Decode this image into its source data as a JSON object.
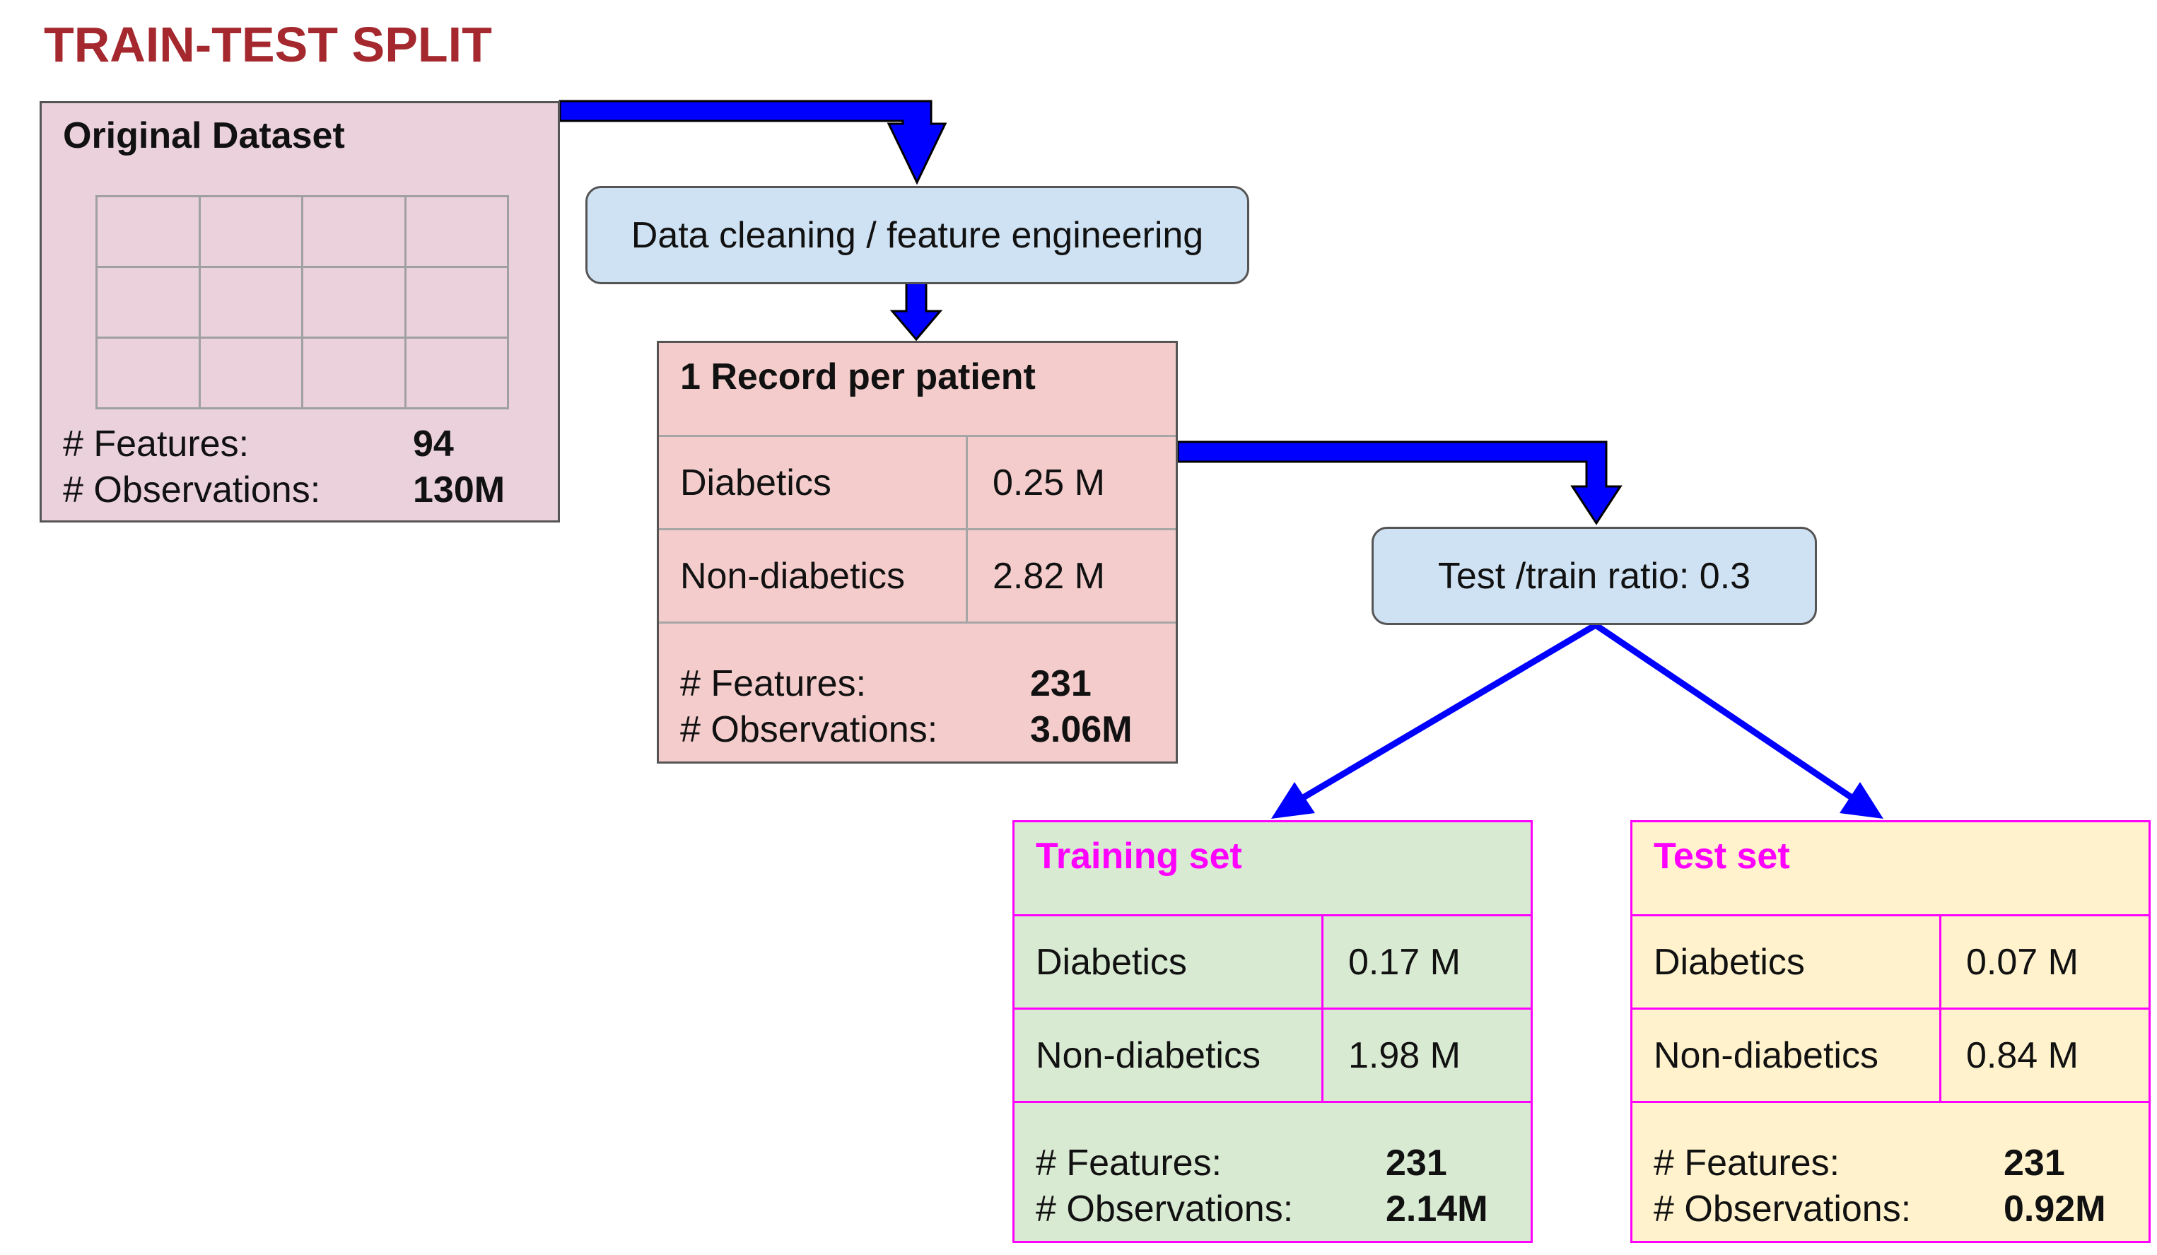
{
  "title": "TRAIN-TEST SPLIT",
  "original_dataset": {
    "title": "Original Dataset",
    "features_label": "# Features:",
    "features_value": "94",
    "observations_label": "# Observations:",
    "observations_value": "130M"
  },
  "cleaning_step": {
    "label": "Data cleaning / feature engineering"
  },
  "record_per_patient": {
    "title": "1 Record per patient",
    "rows": [
      {
        "label": "Diabetics",
        "value": "0.25 M"
      },
      {
        "label": "Non-diabetics",
        "value": "2.82 M"
      }
    ],
    "features_label": "# Features:",
    "features_value": "231",
    "observations_label": "# Observations:",
    "observations_value": "3.06M"
  },
  "split_step": {
    "label": "Test /train ratio: 0.3"
  },
  "training_set": {
    "title": "Training set",
    "rows": [
      {
        "label": "Diabetics",
        "value": "0.17 M"
      },
      {
        "label": "Non-diabetics",
        "value": "1.98 M"
      }
    ],
    "features_label": "# Features:",
    "features_value": "231",
    "observations_label": "# Observations:",
    "observations_value": "2.14M"
  },
  "test_set": {
    "title": "Test set",
    "rows": [
      {
        "label": "Diabetics",
        "value": "0.07 M"
      },
      {
        "label": "Non-diabetics",
        "value": "0.84 M"
      }
    ],
    "features_label": "# Features:",
    "features_value": "231",
    "observations_label": "# Observations:",
    "observations_value": "0.92M"
  },
  "colors": {
    "title": "#a4282d",
    "arrow": "#0000ff",
    "original_bg": "#ead1dc",
    "process_bg": "#cfe2f3",
    "record_bg": "#f4cccc",
    "training_bg": "#d9ead3",
    "test_bg": "#fff2cc",
    "split_border": "#ff00ff"
  }
}
